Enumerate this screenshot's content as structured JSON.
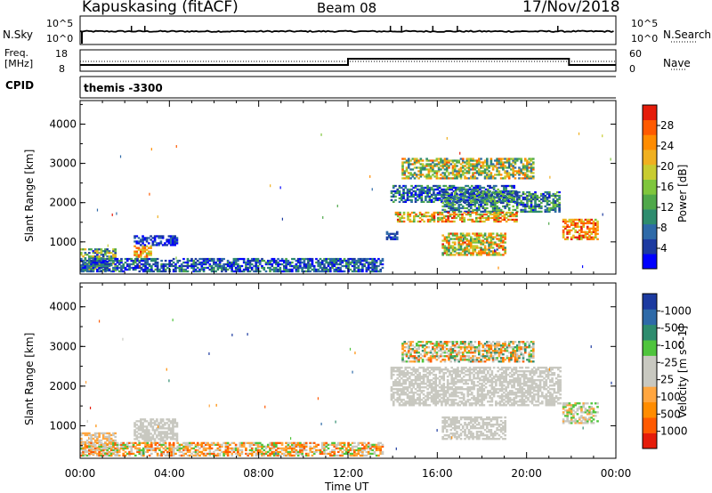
{
  "header": {
    "radar": "Kapuskasing (fitACF)",
    "beam": "Beam 08",
    "date": "17/Nov/2018"
  },
  "noise_panel": {
    "left_label": "N.Sky",
    "left_ticks": [
      "10^5",
      "10^0"
    ],
    "right_ticks": [
      "10^5",
      "10^0"
    ],
    "right_label": "N.Search"
  },
  "freq_panel": {
    "left_label_1": "Freq.",
    "left_label_2": "[MHz]",
    "left_ticks": [
      "18",
      "8"
    ],
    "right_ticks": [
      "60",
      "0"
    ],
    "right_label": "Nave"
  },
  "cpid_panel": {
    "label": "CPID",
    "program": "themis -3300"
  },
  "colors": {
    "power": [
      "#0000ff",
      "#1c3aa0",
      "#2e6aa8",
      "#2e8c6e",
      "#4fa84a",
      "#7fc63c",
      "#c8cc30",
      "#f0b020",
      "#ff8c00",
      "#ff5a00",
      "#e51c0a"
    ],
    "velocity": [
      "#e51c0a",
      "#ff5a00",
      "#ff8c00",
      "#ffa640",
      "#c8c8c0",
      "#c8c8c0",
      "#4fc43c",
      "#2e8c6e",
      "#2e6aa8",
      "#1c3aa0"
    ]
  },
  "chart_data": [
    {
      "type": "heatmap",
      "panel": "power",
      "ylabel": "Slant Range [km]",
      "xlim": [
        "00:00",
        "24:00"
      ],
      "ylim": [
        180,
        4600
      ],
      "yticks": [
        1000,
        2000,
        3000,
        4000
      ],
      "xticks": [
        "00:00",
        "04:00",
        "08:00",
        "12:00",
        "16:00",
        "20:00",
        "00:00"
      ],
      "colorbar_label": "Power [dB]",
      "colorbar_ticks": [
        4,
        8,
        12,
        16,
        20,
        24,
        28
      ],
      "regions": [
        {
          "t0": 0.0,
          "t1": 1.6,
          "r0": 250,
          "r1": 800,
          "v0": 4,
          "v1": 24
        },
        {
          "t0": 2.4,
          "t1": 3.2,
          "r0": 600,
          "r1": 900,
          "v0": 16,
          "v1": 30
        },
        {
          "t0": 2.4,
          "t1": 4.3,
          "r0": 900,
          "r1": 1150,
          "v0": 2,
          "v1": 10
        },
        {
          "t0": 0.0,
          "t1": 13.5,
          "r0": 230,
          "r1": 560,
          "v0": 2,
          "v1": 14
        },
        {
          "t0": 14.4,
          "t1": 20.3,
          "r0": 2600,
          "r1": 3100,
          "v0": 8,
          "v1": 28
        },
        {
          "t0": 13.9,
          "t1": 19.5,
          "r0": 2000,
          "r1": 2450,
          "v0": 2,
          "v1": 16
        },
        {
          "t0": 16.2,
          "t1": 21.5,
          "r0": 1750,
          "r1": 2250,
          "v0": 4,
          "v1": 18
        },
        {
          "t0": 14.1,
          "t1": 19.5,
          "r0": 1500,
          "r1": 1750,
          "v0": 14,
          "v1": 32
        },
        {
          "t0": 16.2,
          "t1": 19.0,
          "r0": 650,
          "r1": 1200,
          "v0": 10,
          "v1": 30
        },
        {
          "t0": 21.6,
          "t1": 23.2,
          "r0": 1050,
          "r1": 1550,
          "v0": 18,
          "v1": 32
        },
        {
          "t0": 13.7,
          "t1": 14.2,
          "r0": 1050,
          "r1": 1250,
          "v0": 4,
          "v1": 10
        }
      ]
    },
    {
      "type": "heatmap",
      "panel": "velocity",
      "ylabel": "Slant Range [km]",
      "xlabel": "Time UT",
      "xlim": [
        "00:00",
        "24:00"
      ],
      "ylim": [
        180,
        4600
      ],
      "yticks": [
        1000,
        2000,
        3000,
        4000
      ],
      "xticks": [
        "00:00",
        "04:00",
        "08:00",
        "12:00",
        "16:00",
        "20:00",
        "00:00"
      ],
      "colorbar_label": "Velocity [m s^-1]",
      "colorbar_ticks": [
        1000,
        500,
        100,
        25,
        -25,
        -100,
        -500,
        -1000
      ],
      "regions": [
        {
          "t0": 0.0,
          "t1": 1.6,
          "r0": 250,
          "r1": 800,
          "v0": 3,
          "v1": 5
        },
        {
          "t0": 2.4,
          "t1": 4.3,
          "r0": 600,
          "r1": 1150,
          "v0": 4,
          "v1": 5
        },
        {
          "t0": 0.0,
          "t1": 13.5,
          "r0": 230,
          "r1": 560,
          "v0": 1,
          "v1": 7
        },
        {
          "t0": 14.4,
          "t1": 20.3,
          "r0": 2600,
          "r1": 3100,
          "v0": 1,
          "v1": 8
        },
        {
          "t0": 13.9,
          "t1": 21.5,
          "r0": 1500,
          "r1": 2450,
          "v0": 4,
          "v1": 5
        },
        {
          "t0": 16.2,
          "t1": 19.0,
          "r0": 650,
          "r1": 1200,
          "v0": 4,
          "v1": 5
        },
        {
          "t0": 21.6,
          "t1": 23.2,
          "r0": 1050,
          "r1": 1550,
          "v0": 3,
          "v1": 7
        }
      ]
    }
  ]
}
